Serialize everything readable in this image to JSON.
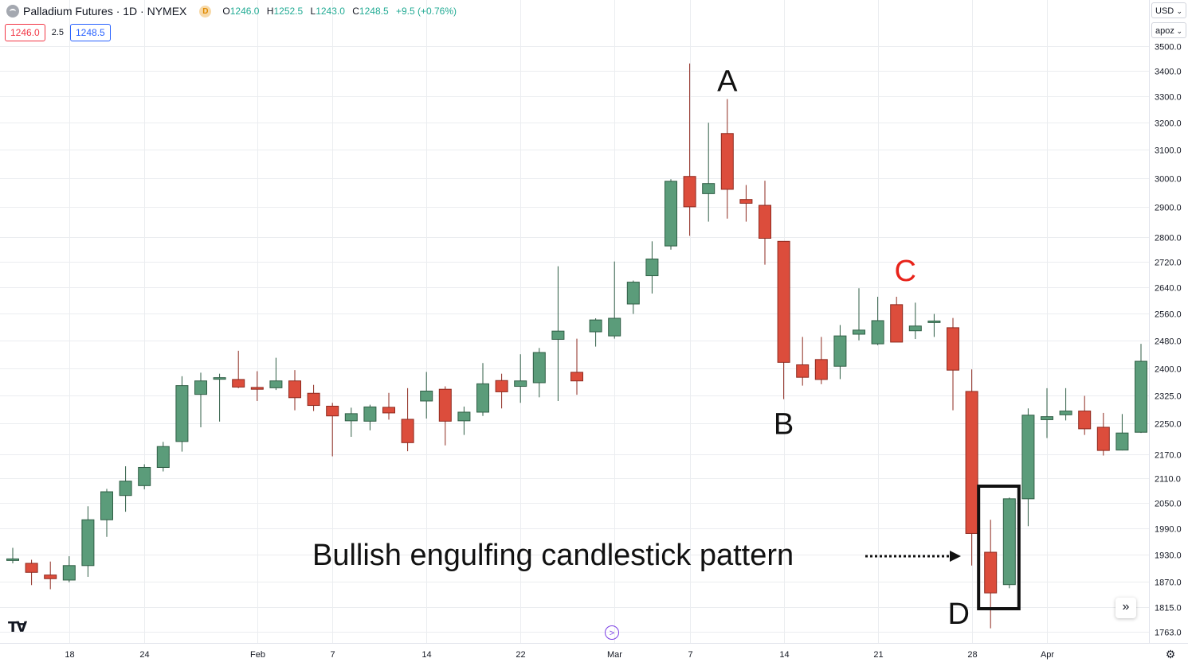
{
  "header": {
    "symbol_title": "Palladium Futures · 1D · NYMEX",
    "data_badge": "D",
    "open_label": "O",
    "open": "1246.0",
    "high_label": "H",
    "high": "1252.5",
    "low_label": "L",
    "low": "1243.0",
    "close_label": "C",
    "close": "1248.5",
    "change": "+9.5 (+0.76%)"
  },
  "trade": {
    "sell": "1246.0",
    "spread": "2.5",
    "buy": "1248.5"
  },
  "currency": "USD",
  "scale_mode": "apoz",
  "colors": {
    "up": "#5b9c7a",
    "down": "#dc4d3c",
    "grid": "#ebedf0",
    "annotation_red": "#e8231a"
  },
  "chart_data": {
    "type": "candlestick",
    "y_scale": "log",
    "ylim": [
      1740,
      3520
    ],
    "y_ticks": [
      3500,
      3400,
      3300,
      3200,
      3100,
      3000,
      2900,
      2800,
      2720,
      2640,
      2560,
      2480,
      2400,
      2325,
      2250,
      2170,
      2110,
      2050,
      1990,
      1930,
      1870,
      1815,
      1763
    ],
    "y_tick_labels": [
      "3500.0",
      "3400.0",
      "3300.0",
      "3200.0",
      "3100.0",
      "3000.0",
      "2900.0",
      "2800.0",
      "2720.0",
      "2640.0",
      "2560.0",
      "2480.0",
      "2400.0",
      "2325.0",
      "2250.0",
      "2170.0",
      "2110.0",
      "2050.0",
      "1990.0",
      "1930.0",
      "1870.0",
      "1815.0",
      "1763.0"
    ],
    "x_tick_labels": [
      {
        "label": "18",
        "index": 3
      },
      {
        "label": "24",
        "index": 7
      },
      {
        "label": "Feb",
        "index": 13
      },
      {
        "label": "7",
        "index": 17
      },
      {
        "label": "14",
        "index": 22
      },
      {
        "label": "22",
        "index": 27
      },
      {
        "label": "Mar",
        "index": 32
      },
      {
        "label": "7",
        "index": 36
      },
      {
        "label": "14",
        "index": 41
      },
      {
        "label": "21",
        "index": 46
      },
      {
        "label": "28",
        "index": 51
      },
      {
        "label": "Apr",
        "index": 55
      }
    ],
    "candles": [
      {
        "o": 1920,
        "h": 1945,
        "l": 1910,
        "c": 1920
      },
      {
        "o": 1910,
        "h": 1918,
        "l": 1862,
        "c": 1890
      },
      {
        "o": 1884,
        "h": 1914,
        "l": 1853,
        "c": 1876
      },
      {
        "o": 1873,
        "h": 1926,
        "l": 1868,
        "c": 1905
      },
      {
        "o": 1905,
        "h": 2042,
        "l": 1880,
        "c": 2010
      },
      {
        "o": 2010,
        "h": 2084,
        "l": 1970,
        "c": 2077
      },
      {
        "o": 2068,
        "h": 2140,
        "l": 2029,
        "c": 2103
      },
      {
        "o": 2092,
        "h": 2145,
        "l": 2083,
        "c": 2137
      },
      {
        "o": 2137,
        "h": 2202,
        "l": 2127,
        "c": 2190
      },
      {
        "o": 2203,
        "h": 2378,
        "l": 2177,
        "c": 2352
      },
      {
        "o": 2328,
        "h": 2388,
        "l": 2240,
        "c": 2365
      },
      {
        "o": 2370,
        "h": 2385,
        "l": 2255,
        "c": 2374
      },
      {
        "o": 2369,
        "h": 2450,
        "l": 2345,
        "c": 2348
      },
      {
        "o": 2347,
        "h": 2392,
        "l": 2310,
        "c": 2342
      },
      {
        "o": 2346,
        "h": 2430,
        "l": 2340,
        "c": 2365
      },
      {
        "o": 2365,
        "h": 2395,
        "l": 2285,
        "c": 2319
      },
      {
        "o": 2331,
        "h": 2354,
        "l": 2283,
        "c": 2298
      },
      {
        "o": 2296,
        "h": 2305,
        "l": 2165,
        "c": 2270
      },
      {
        "o": 2257,
        "h": 2292,
        "l": 2215,
        "c": 2276
      },
      {
        "o": 2256,
        "h": 2300,
        "l": 2232,
        "c": 2294
      },
      {
        "o": 2293,
        "h": 2332,
        "l": 2260,
        "c": 2278
      },
      {
        "o": 2261,
        "h": 2345,
        "l": 2178,
        "c": 2200
      },
      {
        "o": 2310,
        "h": 2390,
        "l": 2263,
        "c": 2337
      },
      {
        "o": 2342,
        "h": 2350,
        "l": 2193,
        "c": 2256
      },
      {
        "o": 2257,
        "h": 2295,
        "l": 2220,
        "c": 2280
      },
      {
        "o": 2280,
        "h": 2415,
        "l": 2270,
        "c": 2357
      },
      {
        "o": 2366,
        "h": 2385,
        "l": 2290,
        "c": 2335
      },
      {
        "o": 2350,
        "h": 2440,
        "l": 2305,
        "c": 2365
      },
      {
        "o": 2360,
        "h": 2458,
        "l": 2320,
        "c": 2445
      },
      {
        "o": 2483,
        "h": 2705,
        "l": 2310,
        "c": 2507
      },
      {
        "o": 2389,
        "h": 2485,
        "l": 2327,
        "c": 2365
      },
      {
        "o": 2505,
        "h": 2545,
        "l": 2462,
        "c": 2540
      },
      {
        "o": 2493,
        "h": 2720,
        "l": 2485,
        "c": 2545
      },
      {
        "o": 2588,
        "h": 2660,
        "l": 2558,
        "c": 2655
      },
      {
        "o": 2675,
        "h": 2785,
        "l": 2620,
        "c": 2728
      },
      {
        "o": 2770,
        "h": 2995,
        "l": 2758,
        "c": 2988
      },
      {
        "o": 3005,
        "h": 3430,
        "l": 2803,
        "c": 2900
      },
      {
        "o": 2945,
        "h": 3200,
        "l": 2850,
        "c": 2980
      },
      {
        "o": 3160,
        "h": 3290,
        "l": 2860,
        "c": 2960
      },
      {
        "o": 2925,
        "h": 2975,
        "l": 2850,
        "c": 2912
      },
      {
        "o": 2905,
        "h": 2990,
        "l": 2710,
        "c": 2795
      },
      {
        "o": 2785,
        "h": 2785,
        "l": 2315,
        "c": 2417
      },
      {
        "o": 2410,
        "h": 2490,
        "l": 2352,
        "c": 2375
      },
      {
        "o": 2425,
        "h": 2490,
        "l": 2356,
        "c": 2369
      },
      {
        "o": 2406,
        "h": 2525,
        "l": 2370,
        "c": 2493
      },
      {
        "o": 2498,
        "h": 2636,
        "l": 2480,
        "c": 2510
      },
      {
        "o": 2470,
        "h": 2610,
        "l": 2466,
        "c": 2538
      },
      {
        "o": 2586,
        "h": 2610,
        "l": 2478,
        "c": 2475
      },
      {
        "o": 2508,
        "h": 2592,
        "l": 2484,
        "c": 2522
      },
      {
        "o": 2537,
        "h": 2558,
        "l": 2490,
        "c": 2537
      },
      {
        "o": 2517,
        "h": 2546,
        "l": 2285,
        "c": 2395
      },
      {
        "o": 2336,
        "h": 2397,
        "l": 1905,
        "c": 1978
      },
      {
        "o": 1935,
        "h": 2010,
        "l": 1770,
        "c": 1845
      },
      {
        "o": 1863,
        "h": 2063,
        "l": 1855,
        "c": 2060
      },
      {
        "o": 2060,
        "h": 2290,
        "l": 1995,
        "c": 2272
      },
      {
        "o": 2260,
        "h": 2345,
        "l": 2212,
        "c": 2268
      },
      {
        "o": 2273,
        "h": 2345,
        "l": 2258,
        "c": 2283
      },
      {
        "o": 2283,
        "h": 2324,
        "l": 2220,
        "c": 2236
      },
      {
        "o": 2240,
        "h": 2278,
        "l": 2167,
        "c": 2180
      },
      {
        "o": 2181,
        "h": 2275,
        "l": 2180,
        "c": 2225
      },
      {
        "o": 2227,
        "h": 2470,
        "l": 2225,
        "c": 2420
      }
    ],
    "annotations": {
      "label_a": "A",
      "label_b": "B",
      "label_c": "C",
      "label_d": "D",
      "pattern_caption": "Bullish engulfing candlestick pattern"
    }
  }
}
